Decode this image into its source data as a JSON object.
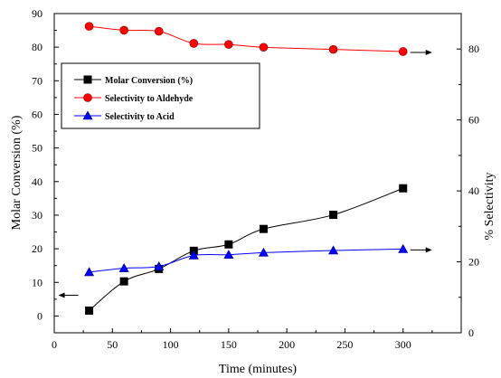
{
  "chart_data": {
    "type": "line",
    "xlabel": "Time (minutes)",
    "ylabel_left": "Molar Conversion (%)",
    "ylabel_right": "% Selectivity",
    "xlim": [
      0,
      350
    ],
    "ylim_left": [
      -5,
      90
    ],
    "ylim_right": [
      0,
      90
    ],
    "x_ticks": [
      0,
      50,
      100,
      150,
      200,
      250,
      300
    ],
    "y_left_ticks": [
      0,
      10,
      20,
      30,
      40,
      50,
      60,
      70,
      80,
      90
    ],
    "y_right_ticks": [
      0,
      20,
      40,
      60,
      80
    ],
    "grid": false,
    "legend_position": "upper-left",
    "series": [
      {
        "name": "Molar Conversion (%)",
        "axis": "left",
        "marker": "square",
        "color": "#000000",
        "marker_color": "#000000",
        "arrow": "left",
        "x": [
          30,
          60,
          90,
          120,
          150,
          180,
          240,
          300
        ],
        "y": [
          1.6,
          10.3,
          14.0,
          19.4,
          21.3,
          25.9,
          30.1,
          38.0
        ]
      },
      {
        "name": "Selectivity to Aldehyde",
        "axis": "right",
        "marker": "circle",
        "color": "#ff0000",
        "marker_color": "#ff0000",
        "arrow": "right",
        "x": [
          30,
          60,
          90,
          120,
          150,
          180,
          240,
          300
        ],
        "y": [
          86.4,
          85.3,
          85.0,
          81.6,
          81.3,
          80.5,
          79.9,
          79.3
        ]
      },
      {
        "name": "Selectivity to Acid",
        "axis": "right",
        "marker": "triangle",
        "color": "#0000ff",
        "marker_color": "#0000ff",
        "arrow": "right",
        "x": [
          30,
          60,
          90,
          120,
          150,
          180,
          240,
          300
        ],
        "y": [
          17.1,
          18.2,
          18.7,
          21.8,
          22.0,
          22.6,
          23.2,
          23.6
        ]
      }
    ]
  }
}
